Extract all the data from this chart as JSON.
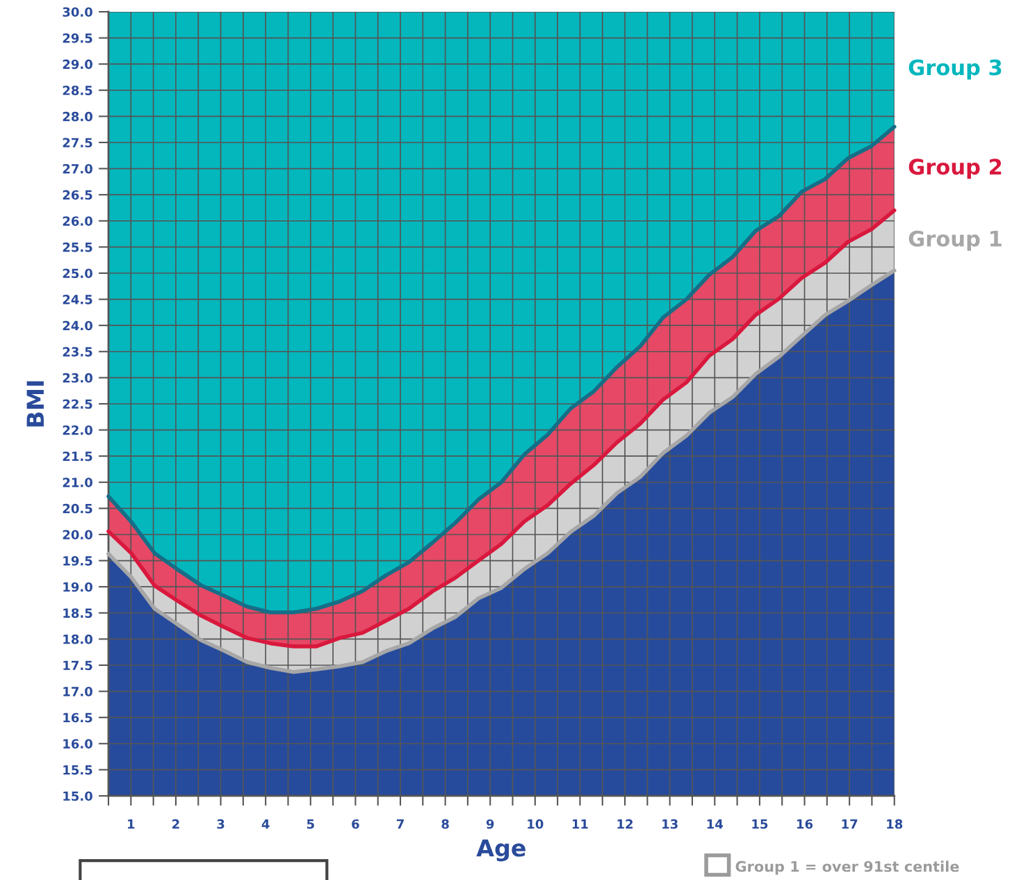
{
  "chart_data": {
    "type": "area",
    "xlabel": "Age",
    "ylabel": "BMI",
    "x": [
      0.5,
      1.01,
      1.53,
      2.04,
      2.56,
      3.07,
      3.59,
      4.1,
      4.62,
      5.13,
      5.65,
      6.16,
      6.68,
      7.19,
      7.71,
      8.22,
      8.74,
      9.25,
      9.76,
      10.28,
      10.79,
      11.31,
      11.82,
      12.34,
      12.85,
      13.37,
      13.88,
      14.4,
      14.91,
      15.43,
      15.94,
      16.46,
      16.97,
      17.49,
      18.0
    ],
    "series": [
      {
        "color": "#274b9c",
        "values": [
          19.63,
          19.18,
          18.58,
          18.28,
          17.98,
          17.78,
          17.56,
          17.45,
          17.37,
          17.42,
          17.48,
          17.56,
          17.77,
          17.92,
          18.2,
          18.42,
          18.78,
          18.98,
          19.34,
          19.64,
          20.05,
          20.36,
          20.79,
          21.1,
          21.56,
          21.89,
          22.33,
          22.63,
          23.07,
          23.4,
          23.8,
          24.2,
          24.47,
          24.77,
          25.05
        ]
      },
      {
        "name": "Group 1",
        "color": "#d1d1d1",
        "values": [
          20.06,
          19.64,
          19.02,
          18.73,
          18.45,
          18.23,
          18.02,
          17.92,
          17.86,
          17.86,
          18.02,
          18.12,
          18.35,
          18.58,
          18.91,
          19.17,
          19.5,
          19.82,
          20.25,
          20.56,
          20.97,
          21.33,
          21.76,
          22.12,
          22.58,
          22.91,
          23.42,
          23.74,
          24.2,
          24.51,
          24.91,
          25.2,
          25.6,
          25.84,
          26.2
        ]
      },
      {
        "name": "Group 2",
        "color": "#e64866",
        "values": [
          20.73,
          20.24,
          19.64,
          19.33,
          19.03,
          18.83,
          18.62,
          18.51,
          18.51,
          18.58,
          18.72,
          18.92,
          19.22,
          19.47,
          19.84,
          20.22,
          20.67,
          21.0,
          21.53,
          21.91,
          22.41,
          22.74,
          23.2,
          23.6,
          24.15,
          24.5,
          24.97,
          25.31,
          25.81,
          26.09,
          26.56,
          26.8,
          27.2,
          27.43,
          27.8
        ]
      },
      {
        "name": "Group 3",
        "color": "#03b7bd",
        "values": [
          30,
          30,
          30,
          30,
          30,
          30,
          30,
          30,
          30,
          30,
          30,
          30,
          30,
          30,
          30,
          30,
          30,
          30,
          30,
          30,
          30,
          30,
          30,
          30,
          30,
          30,
          30,
          30,
          30,
          30,
          30,
          30,
          30,
          30,
          30
        ]
      },
      {
        "type": "line",
        "color": "#166e86",
        "values": [
          20.73,
          20.24,
          19.64,
          19.33,
          19.03,
          18.83,
          18.62,
          18.51,
          18.51,
          18.58,
          18.72,
          18.92,
          19.22,
          19.47,
          19.84,
          20.22,
          20.67,
          21.0,
          21.53,
          21.91,
          22.41,
          22.74,
          23.2,
          23.6,
          24.15,
          24.5,
          24.97,
          25.31,
          25.81,
          26.09,
          26.56,
          26.8,
          27.2,
          27.43,
          27.8
        ]
      }
    ],
    "xlim": [
      0.5,
      18
    ],
    "xticks": [
      {
        "value": 0.5,
        "label": null
      },
      1,
      {
        "value": 1.5,
        "label": null
      },
      2,
      {
        "value": 2.5,
        "label": null
      },
      3,
      {
        "value": 3.5,
        "label": null
      },
      4,
      {
        "value": 4.5,
        "label": null
      },
      5,
      {
        "value": 5.5,
        "label": null
      },
      6,
      {
        "value": 6.5,
        "label": null
      },
      7,
      {
        "value": 7.5,
        "label": null
      },
      8,
      {
        "value": 8.5,
        "label": null
      },
      9,
      {
        "value": 9.5,
        "label": null
      },
      10,
      {
        "value": 10.5,
        "label": null
      },
      11,
      {
        "value": 11.5,
        "label": null
      },
      12,
      {
        "value": 12.5,
        "label": null
      },
      13,
      {
        "value": 13.5,
        "label": null
      },
      14,
      {
        "value": 14.5,
        "label": null
      },
      15,
      {
        "value": 15.5,
        "label": null
      },
      16,
      {
        "value": 16.5,
        "label": null
      },
      17,
      {
        "value": 17.5,
        "label": null
      },
      18
    ],
    "ylim": [
      15,
      30
    ],
    "yticks": [
      {
        "value": 15,
        "label": "15.0"
      },
      15.5,
      {
        "value": 16,
        "label": "16.0"
      },
      16.5,
      {
        "value": 17,
        "label": "17.0"
      },
      17.5,
      {
        "value": 18,
        "label": "18.0"
      },
      18.5,
      {
        "value": 19,
        "label": "19.0"
      },
      19.5,
      {
        "value": 20,
        "label": "20.0"
      },
      20.5,
      {
        "value": 21,
        "label": "21.0"
      },
      21.5,
      {
        "value": 22,
        "label": "22.0"
      },
      22.5,
      {
        "value": 23,
        "label": "23.0"
      },
      23.5,
      {
        "value": 24,
        "label": "24.0"
      },
      24.5,
      {
        "value": 25,
        "label": "25.0"
      },
      25.5,
      {
        "value": 26,
        "label": "26.0"
      },
      26.5,
      {
        "value": 27,
        "label": "27.0"
      },
      27.5,
      {
        "value": 28,
        "label": "28.0"
      },
      28.5,
      {
        "value": 29,
        "label": "29.0"
      },
      29.5,
      {
        "value": 30,
        "label": "30.0"
      }
    ],
    "grid": true,
    "line_style": "solid",
    "annotations": [
      "Group 1 = over 91st centile"
    ]
  }
}
